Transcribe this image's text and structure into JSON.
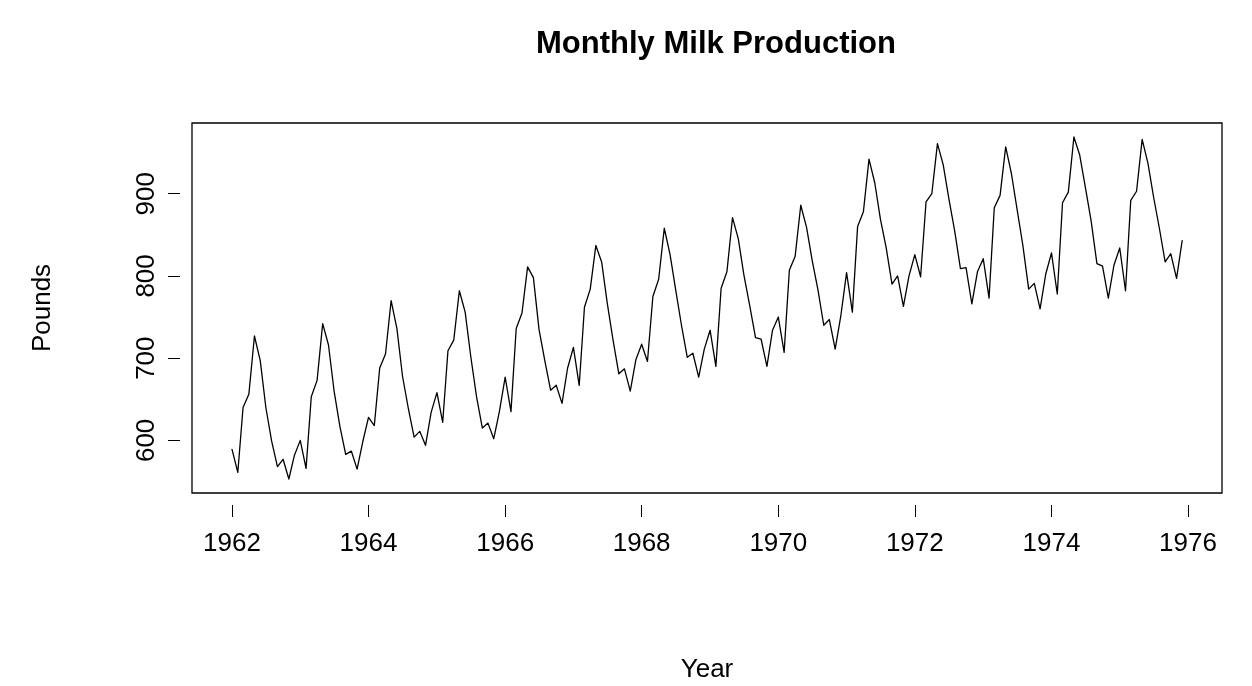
{
  "chart_data": {
    "type": "line",
    "title": "Monthly Milk Production",
    "xlabel": "Year",
    "ylabel": "Pounds",
    "x": [
      "1962-01",
      "1962-02",
      "1962-03",
      "1962-04",
      "1962-05",
      "1962-06",
      "1962-07",
      "1962-08",
      "1962-09",
      "1962-10",
      "1962-11",
      "1962-12",
      "1963-01",
      "1963-02",
      "1963-03",
      "1963-04",
      "1963-05",
      "1963-06",
      "1963-07",
      "1963-08",
      "1963-09",
      "1963-10",
      "1963-11",
      "1963-12",
      "1964-01",
      "1964-02",
      "1964-03",
      "1964-04",
      "1964-05",
      "1964-06",
      "1964-07",
      "1964-08",
      "1964-09",
      "1964-10",
      "1964-11",
      "1964-12",
      "1965-01",
      "1965-02",
      "1965-03",
      "1965-04",
      "1965-05",
      "1965-06",
      "1965-07",
      "1965-08",
      "1965-09",
      "1965-10",
      "1965-11",
      "1965-12",
      "1966-01",
      "1966-02",
      "1966-03",
      "1966-04",
      "1966-05",
      "1966-06",
      "1966-07",
      "1966-08",
      "1966-09",
      "1966-10",
      "1966-11",
      "1966-12",
      "1967-01",
      "1967-02",
      "1967-03",
      "1967-04",
      "1967-05",
      "1967-06",
      "1967-07",
      "1967-08",
      "1967-09",
      "1967-10",
      "1967-11",
      "1967-12",
      "1968-01",
      "1968-02",
      "1968-03",
      "1968-04",
      "1968-05",
      "1968-06",
      "1968-07",
      "1968-08",
      "1968-09",
      "1968-10",
      "1968-11",
      "1968-12",
      "1969-01",
      "1969-02",
      "1969-03",
      "1969-04",
      "1969-05",
      "1969-06",
      "1969-07",
      "1969-08",
      "1969-09",
      "1969-10",
      "1969-11",
      "1969-12",
      "1970-01",
      "1970-02",
      "1970-03",
      "1970-04",
      "1970-05",
      "1970-06",
      "1970-07",
      "1970-08",
      "1970-09",
      "1970-10",
      "1970-11",
      "1970-12",
      "1971-01",
      "1971-02",
      "1971-03",
      "1971-04",
      "1971-05",
      "1971-06",
      "1971-07",
      "1971-08",
      "1971-09",
      "1971-10",
      "1971-11",
      "1971-12",
      "1972-01",
      "1972-02",
      "1972-03",
      "1972-04",
      "1972-05",
      "1972-06",
      "1972-07",
      "1972-08",
      "1972-09",
      "1972-10",
      "1972-11",
      "1972-12",
      "1973-01",
      "1973-02",
      "1973-03",
      "1973-04",
      "1973-05",
      "1973-06",
      "1973-07",
      "1973-08",
      "1973-09",
      "1973-10",
      "1973-11",
      "1973-12",
      "1974-01",
      "1974-02",
      "1974-03",
      "1974-04",
      "1974-05",
      "1974-06",
      "1974-07",
      "1974-08",
      "1974-09",
      "1974-10",
      "1974-11",
      "1974-12",
      "1975-01",
      "1975-02",
      "1975-03",
      "1975-04",
      "1975-05",
      "1975-06",
      "1975-07",
      "1975-08",
      "1975-09",
      "1975-10",
      "1975-11",
      "1975-12"
    ],
    "series": [
      {
        "color": "#000000",
        "values": [
          589,
          561,
          640,
          656,
          727,
          697,
          640,
          599,
          568,
          577,
          553,
          582,
          600,
          566,
          653,
          673,
          742,
          716,
          660,
          617,
          583,
          587,
          565,
          598,
          628,
          618,
          688,
          705,
          770,
          736,
          678,
          639,
          604,
          611,
          594,
          634,
          658,
          622,
          709,
          722,
          782,
          756,
          702,
          653,
          615,
          621,
          602,
          635,
          677,
          635,
          736,
          755,
          811,
          798,
          735,
          697,
          661,
          667,
          645,
          688,
          713,
          667,
          762,
          784,
          837,
          817,
          767,
          722,
          681,
          687,
          660,
          698,
          717,
          696,
          775,
          796,
          858,
          826,
          783,
          740,
          701,
          706,
          677,
          711,
          734,
          690,
          785,
          805,
          871,
          845,
          801,
          764,
          725,
          723,
          690,
          734,
          750,
          707,
          807,
          824,
          886,
          859,
          819,
          783,
          740,
          747,
          711,
          751,
          804,
          756,
          860,
          878,
          942,
          913,
          869,
          834,
          790,
          800,
          763,
          800,
          826,
          799,
          890,
          900,
          961,
          935,
          894,
          855,
          809,
          810,
          766,
          805,
          821,
          773,
          883,
          898,
          957,
          924,
          881,
          837,
          784,
          791,
          760,
          802,
          828,
          778,
          889,
          902,
          969,
          947,
          908,
          867,
          815,
          812,
          773,
          813,
          834,
          782,
          892,
          903,
          966,
          937,
          896,
          858,
          817,
          827,
          797,
          843
        ]
      }
    ],
    "xlim": [
      "1961-06",
      "1976-07"
    ],
    "xticks": [
      "1962",
      "1964",
      "1966",
      "1968",
      "1970",
      "1972",
      "1974",
      "1976"
    ],
    "ylim": [
      536,
      986
    ],
    "yticks": [
      600,
      700,
      800,
      900
    ],
    "grid": false,
    "marker": "none",
    "line_style": "solid"
  }
}
